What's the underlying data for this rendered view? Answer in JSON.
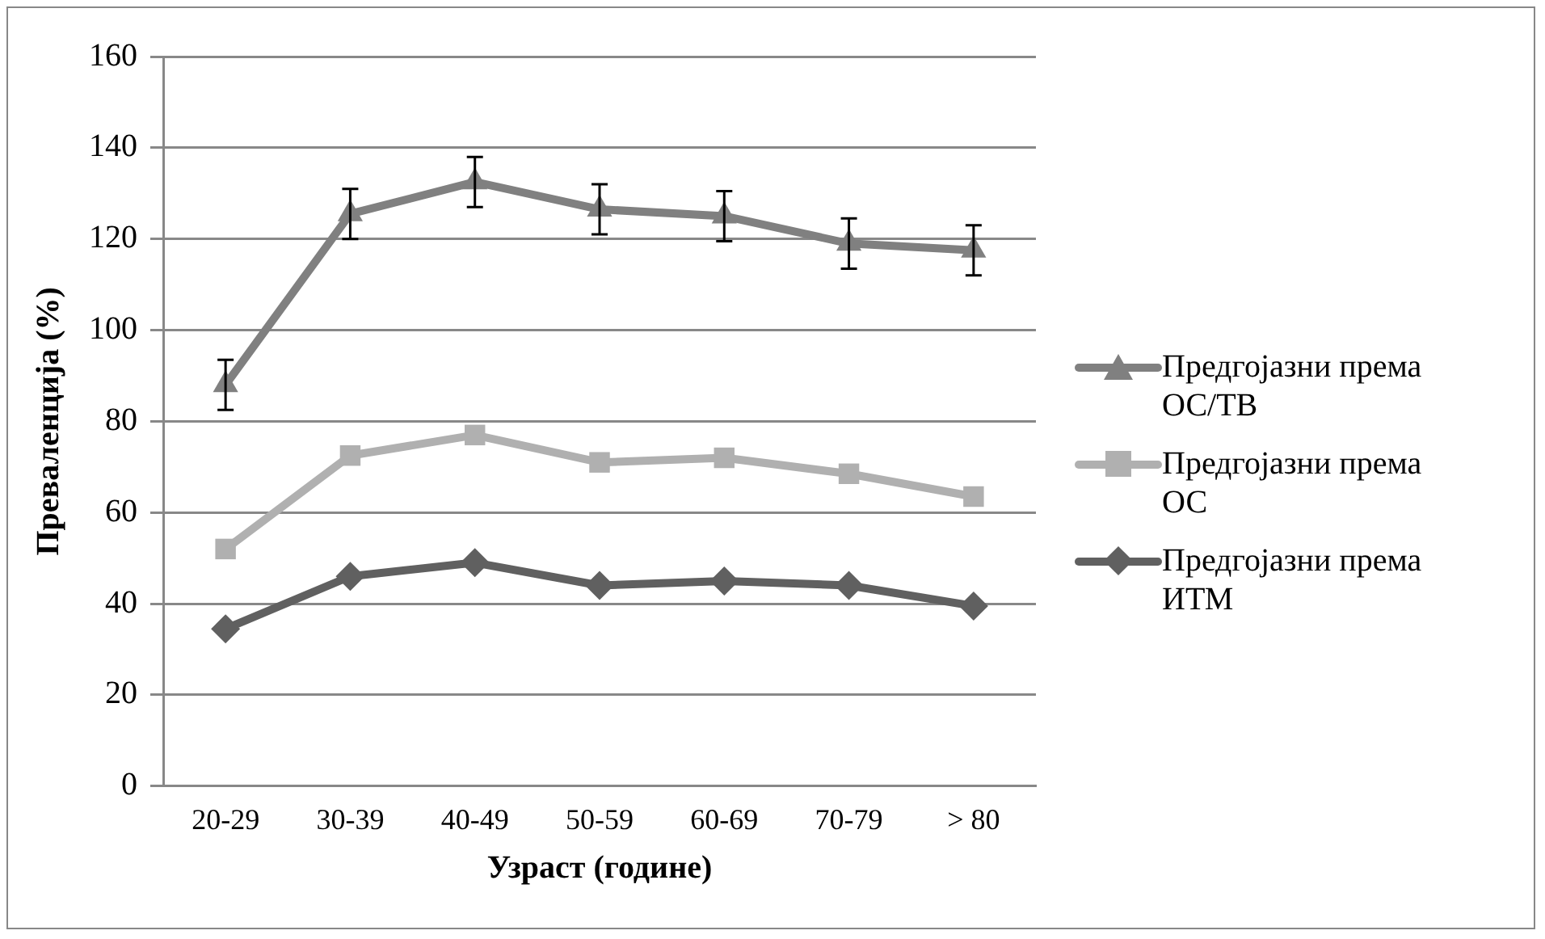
{
  "chart_data": {
    "type": "line",
    "xlabel": "Узраст (године)",
    "ylabel": "Преваленција (%)",
    "categories": [
      "20-29",
      "30-39",
      "40-49",
      "50-59",
      "60-69",
      "70-79",
      "> 80"
    ],
    "ylim": [
      0,
      160
    ],
    "yticks": [
      0,
      20,
      40,
      60,
      80,
      100,
      120,
      140,
      160
    ],
    "grid": "y",
    "legend": "right",
    "series": [
      {
        "name": "Предгојазни према ОС/ТВ",
        "color": "#808080",
        "marker": "triangle",
        "values": [
          88,
          125.5,
          132.5,
          126.5,
          125,
          119,
          117.5
        ],
        "errors": [
          5.5,
          5.5,
          5.5,
          5.5,
          5.5,
          5.5,
          5.5
        ]
      },
      {
        "name": "Предгојазни према ОС",
        "color": "#b0b0b0",
        "marker": "square",
        "values": [
          52,
          72.5,
          77,
          71,
          72,
          68.5,
          63.5
        ]
      },
      {
        "name": "Предгојазни према ИТМ",
        "color": "#606060",
        "marker": "diamond",
        "values": [
          34.5,
          46,
          49,
          44,
          45,
          44,
          39.5
        ]
      }
    ]
  }
}
